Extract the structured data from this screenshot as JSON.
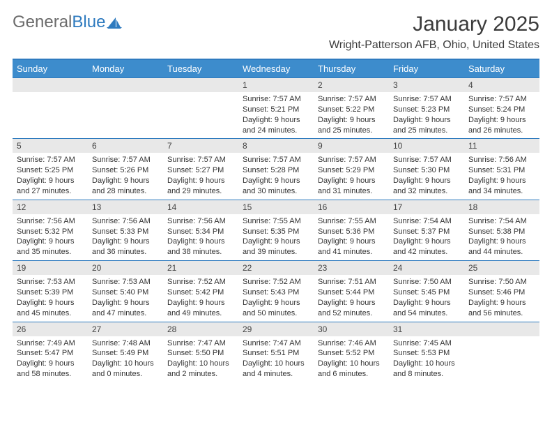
{
  "logo": {
    "text_left": "General",
    "text_right": "Blue"
  },
  "title": "January 2025",
  "location": "Wright-Patterson AFB, Ohio, United States",
  "colors": {
    "header_bar": "#3d8ccc",
    "rule": "#2f7bbf",
    "daynum_bg": "#e8e8e8",
    "text": "#333333",
    "logo_gray": "#6b6b6b",
    "logo_blue": "#2f7bbf",
    "page_bg": "#ffffff"
  },
  "day_names": [
    "Sunday",
    "Monday",
    "Tuesday",
    "Wednesday",
    "Thursday",
    "Friday",
    "Saturday"
  ],
  "weeks": [
    [
      null,
      null,
      null,
      {
        "n": "1",
        "sr": "7:57 AM",
        "ss": "5:21 PM",
        "dl": "9 hours and 24 minutes."
      },
      {
        "n": "2",
        "sr": "7:57 AM",
        "ss": "5:22 PM",
        "dl": "9 hours and 25 minutes."
      },
      {
        "n": "3",
        "sr": "7:57 AM",
        "ss": "5:23 PM",
        "dl": "9 hours and 25 minutes."
      },
      {
        "n": "4",
        "sr": "7:57 AM",
        "ss": "5:24 PM",
        "dl": "9 hours and 26 minutes."
      }
    ],
    [
      {
        "n": "5",
        "sr": "7:57 AM",
        "ss": "5:25 PM",
        "dl": "9 hours and 27 minutes."
      },
      {
        "n": "6",
        "sr": "7:57 AM",
        "ss": "5:26 PM",
        "dl": "9 hours and 28 minutes."
      },
      {
        "n": "7",
        "sr": "7:57 AM",
        "ss": "5:27 PM",
        "dl": "9 hours and 29 minutes."
      },
      {
        "n": "8",
        "sr": "7:57 AM",
        "ss": "5:28 PM",
        "dl": "9 hours and 30 minutes."
      },
      {
        "n": "9",
        "sr": "7:57 AM",
        "ss": "5:29 PM",
        "dl": "9 hours and 31 minutes."
      },
      {
        "n": "10",
        "sr": "7:57 AM",
        "ss": "5:30 PM",
        "dl": "9 hours and 32 minutes."
      },
      {
        "n": "11",
        "sr": "7:56 AM",
        "ss": "5:31 PM",
        "dl": "9 hours and 34 minutes."
      }
    ],
    [
      {
        "n": "12",
        "sr": "7:56 AM",
        "ss": "5:32 PM",
        "dl": "9 hours and 35 minutes."
      },
      {
        "n": "13",
        "sr": "7:56 AM",
        "ss": "5:33 PM",
        "dl": "9 hours and 36 minutes."
      },
      {
        "n": "14",
        "sr": "7:56 AM",
        "ss": "5:34 PM",
        "dl": "9 hours and 38 minutes."
      },
      {
        "n": "15",
        "sr": "7:55 AM",
        "ss": "5:35 PM",
        "dl": "9 hours and 39 minutes."
      },
      {
        "n": "16",
        "sr": "7:55 AM",
        "ss": "5:36 PM",
        "dl": "9 hours and 41 minutes."
      },
      {
        "n": "17",
        "sr": "7:54 AM",
        "ss": "5:37 PM",
        "dl": "9 hours and 42 minutes."
      },
      {
        "n": "18",
        "sr": "7:54 AM",
        "ss": "5:38 PM",
        "dl": "9 hours and 44 minutes."
      }
    ],
    [
      {
        "n": "19",
        "sr": "7:53 AM",
        "ss": "5:39 PM",
        "dl": "9 hours and 45 minutes."
      },
      {
        "n": "20",
        "sr": "7:53 AM",
        "ss": "5:40 PM",
        "dl": "9 hours and 47 minutes."
      },
      {
        "n": "21",
        "sr": "7:52 AM",
        "ss": "5:42 PM",
        "dl": "9 hours and 49 minutes."
      },
      {
        "n": "22",
        "sr": "7:52 AM",
        "ss": "5:43 PM",
        "dl": "9 hours and 50 minutes."
      },
      {
        "n": "23",
        "sr": "7:51 AM",
        "ss": "5:44 PM",
        "dl": "9 hours and 52 minutes."
      },
      {
        "n": "24",
        "sr": "7:50 AM",
        "ss": "5:45 PM",
        "dl": "9 hours and 54 minutes."
      },
      {
        "n": "25",
        "sr": "7:50 AM",
        "ss": "5:46 PM",
        "dl": "9 hours and 56 minutes."
      }
    ],
    [
      {
        "n": "26",
        "sr": "7:49 AM",
        "ss": "5:47 PM",
        "dl": "9 hours and 58 minutes."
      },
      {
        "n": "27",
        "sr": "7:48 AM",
        "ss": "5:49 PM",
        "dl": "10 hours and 0 minutes."
      },
      {
        "n": "28",
        "sr": "7:47 AM",
        "ss": "5:50 PM",
        "dl": "10 hours and 2 minutes."
      },
      {
        "n": "29",
        "sr": "7:47 AM",
        "ss": "5:51 PM",
        "dl": "10 hours and 4 minutes."
      },
      {
        "n": "30",
        "sr": "7:46 AM",
        "ss": "5:52 PM",
        "dl": "10 hours and 6 minutes."
      },
      {
        "n": "31",
        "sr": "7:45 AM",
        "ss": "5:53 PM",
        "dl": "10 hours and 8 minutes."
      },
      null
    ]
  ],
  "labels": {
    "sunrise": "Sunrise:",
    "sunset": "Sunset:",
    "daylight": "Daylight:"
  }
}
